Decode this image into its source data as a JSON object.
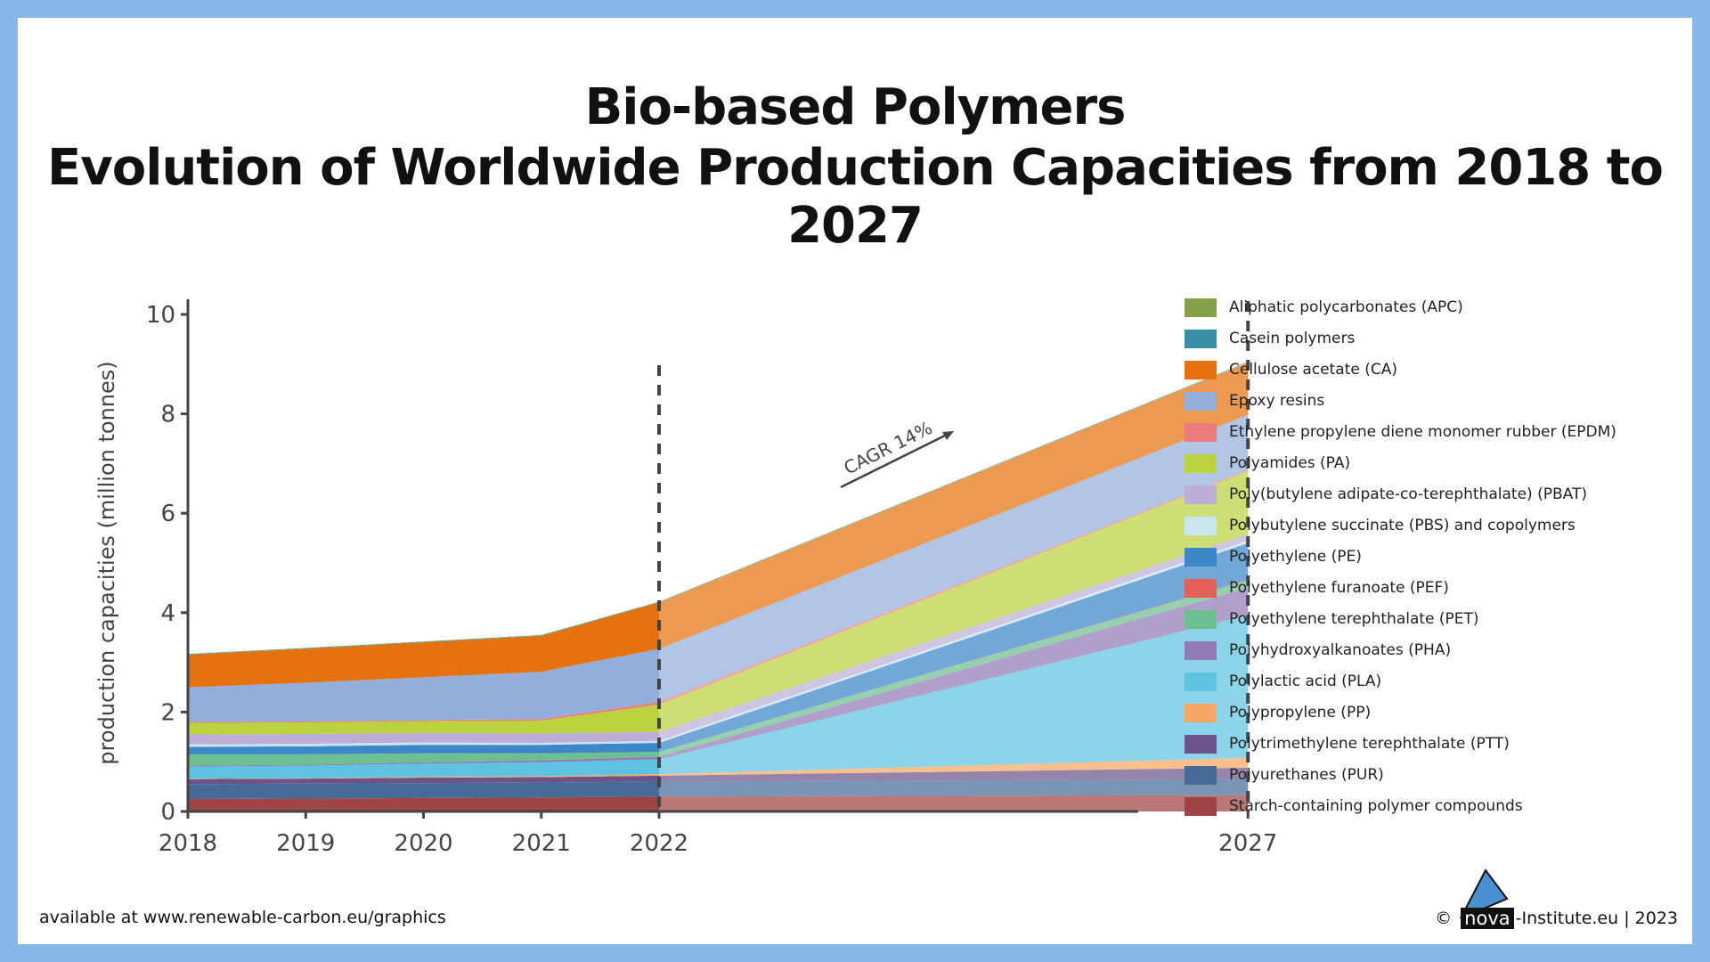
{
  "title_line1": "Bio-based Polymers",
  "title_line2": "Evolution of Worldwide Production Capacities from 2018 to 2027",
  "footer_left": "available at www.renewable-carbon.eu/graphics",
  "footer_right": {
    "copyright": "©",
    "logo": "nova",
    "suffix": "-Institute.eu | 2023"
  },
  "chart_data": {
    "type": "area",
    "stacked": true,
    "title": "",
    "xlabel": "",
    "ylabel": "production capacities (million tonnes)",
    "ylim": [
      0,
      10
    ],
    "yticks": [
      "0",
      "2",
      "4",
      "6",
      "8",
      "10"
    ],
    "x": [
      2018,
      2019,
      2020,
      2021,
      2022,
      2027
    ],
    "xticks": [
      "2018",
      "2019",
      "2020",
      "2021",
      "2022",
      "2027"
    ],
    "vlines": [
      2022,
      2027
    ],
    "annotation": "CAGR 14%",
    "legend_position": "right",
    "series": [
      {
        "name": "Starch-containing polymer compounds",
        "color": "#9e4444",
        "values": [
          0.25,
          0.26,
          0.27,
          0.28,
          0.3,
          0.33
        ]
      },
      {
        "name": "Polyurethanes (PUR)",
        "color": "#466b98",
        "values": [
          0.3,
          0.3,
          0.3,
          0.3,
          0.3,
          0.32
        ]
      },
      {
        "name": "Polytrimethylene terephthalate (PTT)",
        "color": "#6c5489",
        "values": [
          0.1,
          0.1,
          0.11,
          0.11,
          0.12,
          0.23
        ]
      },
      {
        "name": "Polypropylene (PP)",
        "color": "#f6a763",
        "values": [
          0.01,
          0.01,
          0.02,
          0.02,
          0.03,
          0.2
        ]
      },
      {
        "name": "Polylactic acid (PLA)",
        "color": "#5ec3e0",
        "values": [
          0.24,
          0.25,
          0.26,
          0.28,
          0.3,
          2.87
        ]
      },
      {
        "name": "Polyhydroxyalkanoates (PHA)",
        "color": "#9279b7",
        "values": [
          0.02,
          0.02,
          0.03,
          0.04,
          0.05,
          0.55
        ]
      },
      {
        "name": "Polyethylene terephthalate (PET)",
        "color": "#6dbf8f",
        "values": [
          0.23,
          0.21,
          0.18,
          0.14,
          0.1,
          0.15
        ]
      },
      {
        "name": "Polyethylene furanoate (PEF)",
        "color": "#e5605a",
        "values": [
          0,
          0,
          0,
          0,
          0,
          0.01
        ]
      },
      {
        "name": "Polyethylene (PE)",
        "color": "#3b87c9",
        "values": [
          0.15,
          0.16,
          0.17,
          0.17,
          0.18,
          0.74
        ]
      },
      {
        "name": "Polybutylene succinate (PBS) and copolymers",
        "color": "#c8e5f0",
        "values": [
          0.05,
          0.05,
          0.05,
          0.04,
          0.04,
          0.05
        ]
      },
      {
        "name": "Poly(butylene adipate-co-terephthalate) (PBAT)",
        "color": "#bcaed6",
        "values": [
          0.2,
          0.2,
          0.19,
          0.19,
          0.18,
          0.13
        ]
      },
      {
        "name": "Polyamides (PA)",
        "color": "#bcd13e",
        "values": [
          0.23,
          0.23,
          0.24,
          0.26,
          0.55,
          1.27
        ]
      },
      {
        "name": "Ethylene propylene diene monomer rubber (EPDM)",
        "color": "#ec7b7b",
        "values": [
          0.02,
          0.02,
          0.02,
          0.03,
          0.05,
          0.02
        ]
      },
      {
        "name": "Epoxy resins",
        "color": "#94aedb",
        "values": [
          0.7,
          0.78,
          0.86,
          0.95,
          1.07,
          1.11
        ]
      },
      {
        "name": "Cellulose acetate (CA)",
        "color": "#e5720f",
        "values": [
          0.65,
          0.68,
          0.7,
          0.72,
          0.93,
          1.05
        ]
      },
      {
        "name": "Casein polymers",
        "color": "#3a8fa6",
        "values": [
          0.01,
          0.01,
          0.01,
          0.01,
          0.01,
          0.01
        ]
      },
      {
        "name": "Aliphatic polycarbonates (APC)",
        "color": "#86a04a",
        "values": [
          0.01,
          0.01,
          0.01,
          0.01,
          0.01,
          0.01
        ]
      }
    ]
  }
}
